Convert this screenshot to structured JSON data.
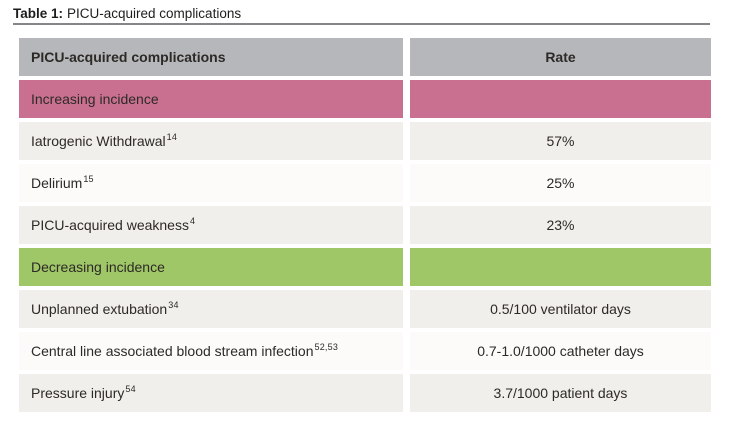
{
  "caption": {
    "label": "Table 1:",
    "text": "PICU-acquired complications"
  },
  "table": {
    "header": {
      "complications": "PICU-acquired complications",
      "rate": "Rate"
    },
    "rows": [
      {
        "type": "section",
        "name": "Increasing incidence",
        "rate": ""
      },
      {
        "type": "data",
        "name": "Iatrogenic Withdrawal",
        "ref": "14",
        "rate": "57%"
      },
      {
        "type": "data",
        "name": "Delirium",
        "ref": "15",
        "rate": "25%"
      },
      {
        "type": "data",
        "name": "PICU-acquired weakness",
        "ref": "4",
        "rate": "23%"
      },
      {
        "type": "section",
        "name": "Decreasing incidence",
        "rate": ""
      },
      {
        "type": "data",
        "name": "Unplanned extubation",
        "ref": "34",
        "rate": "0.5/100 ventilator days"
      },
      {
        "type": "data",
        "name": "Central line associated blood stream infection",
        "ref": "52,53",
        "rate": "0.7-1.0/1000 catheter days"
      },
      {
        "type": "data",
        "name": "Pressure injury",
        "ref": "54",
        "rate": "3.7/1000 patient days"
      }
    ]
  },
  "colors": {
    "header-gray": "#b5b7bb",
    "pink": "#c97090",
    "green": "#9fc667",
    "row-light": "#f1efec",
    "row-white": "#fcfbfa",
    "rule-gray": "#85868a",
    "text": "#2d2a26"
  }
}
